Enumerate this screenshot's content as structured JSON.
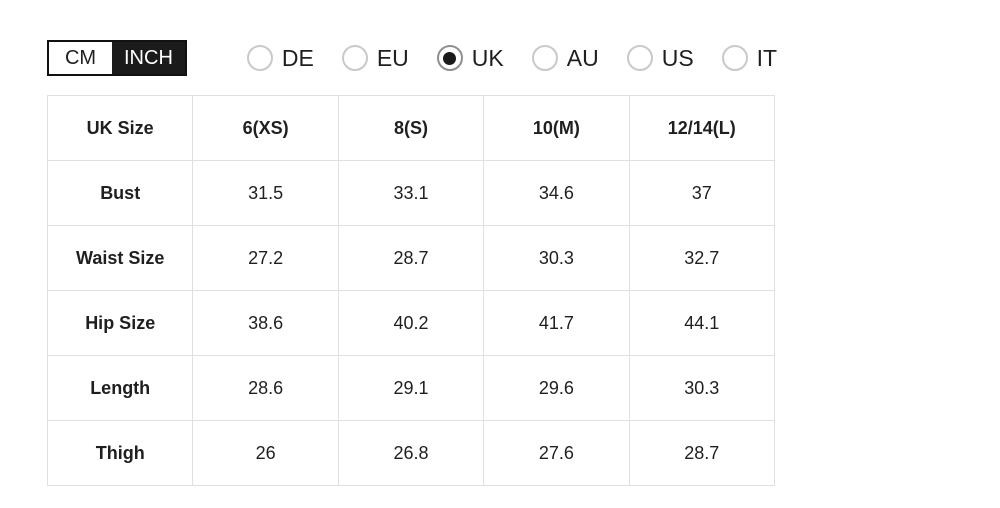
{
  "unit_toggle": {
    "cm_label": "CM",
    "inch_label": "INCH",
    "selected_unit": "INCH"
  },
  "region_options": [
    {
      "label": "DE",
      "selected": false
    },
    {
      "label": "EU",
      "selected": false
    },
    {
      "label": "UK",
      "selected": true
    },
    {
      "label": "AU",
      "selected": false
    },
    {
      "label": "US",
      "selected": false
    },
    {
      "label": "IT",
      "selected": false
    }
  ],
  "size_table": {
    "columns": [
      "UK Size",
      "6(XS)",
      "8(S)",
      "10(M)",
      "12/14(L)"
    ],
    "rows": [
      {
        "label": "Bust",
        "values": [
          "31.5",
          "33.1",
          "34.6",
          "37"
        ]
      },
      {
        "label": "Waist Size",
        "values": [
          "27.2",
          "28.7",
          "30.3",
          "32.7"
        ]
      },
      {
        "label": "Hip Size",
        "values": [
          "38.6",
          "40.2",
          "41.7",
          "44.1"
        ]
      },
      {
        "label": "Length",
        "values": [
          "28.6",
          "29.1",
          "29.6",
          "30.3"
        ]
      },
      {
        "label": "Thigh",
        "values": [
          "26",
          "26.8",
          "27.6",
          "28.7"
        ]
      }
    ]
  },
  "colors": {
    "toggle_active_bg": "#1b1b1b",
    "toggle_active_text": "#ffffff",
    "table_border": "#e0e0e0",
    "radio_dot": "#1a1a1a",
    "text": "#1f1f1f"
  }
}
